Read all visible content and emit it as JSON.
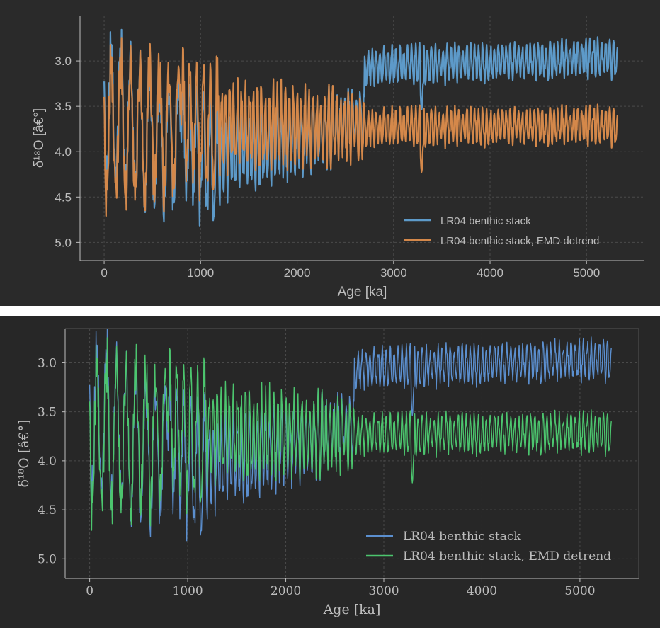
{
  "chart_data": [
    {
      "type": "line",
      "style": "sans",
      "xlabel": "Age [ka]",
      "ylabel": "δ¹⁸O [â€°]",
      "xlim": [
        -250,
        5600
      ],
      "ylim": [
        5.2,
        2.5
      ],
      "y_inverted": true,
      "xticks": [
        0,
        1000,
        2000,
        3000,
        4000,
        5000
      ],
      "yticks": [
        3.0,
        3.5,
        4.0,
        4.5,
        5.0
      ],
      "xtick_labels": [
        "0",
        "1000",
        "2000",
        "3000",
        "4000",
        "5000"
      ],
      "ytick_labels": [
        "3.0",
        "3.5",
        "4.0",
        "4.5",
        "5.0"
      ],
      "grid": true,
      "legend_position": "lower-right",
      "series": [
        {
          "name": "LR04 benthic stack",
          "color": "#5d9ac9"
        },
        {
          "name": "LR04 benthic stack, EMD detrend",
          "color": "#d4884a"
        }
      ]
    },
    {
      "type": "line",
      "style": "serif",
      "xlabel": "Age [ka]",
      "ylabel": "δ¹⁸O [â€°]",
      "xlim": [
        -250,
        5600
      ],
      "ylim": [
        5.2,
        2.65
      ],
      "y_inverted": true,
      "xticks": [
        0,
        1000,
        2000,
        3000,
        4000,
        5000
      ],
      "yticks": [
        3.0,
        3.5,
        4.0,
        4.5,
        5.0
      ],
      "xtick_labels": [
        "0",
        "1000",
        "2000",
        "3000",
        "4000",
        "5000"
      ],
      "ytick_labels": [
        "3.0",
        "3.5",
        "4.0",
        "4.5",
        "5.0"
      ],
      "grid": true,
      "legend_position": "lower-right",
      "series": [
        {
          "name": "LR04 benthic stack",
          "color": "#5b8fcf"
        },
        {
          "name": "LR04 benthic stack, EMD detrend",
          "color": "#4cc56e"
        }
      ]
    }
  ]
}
